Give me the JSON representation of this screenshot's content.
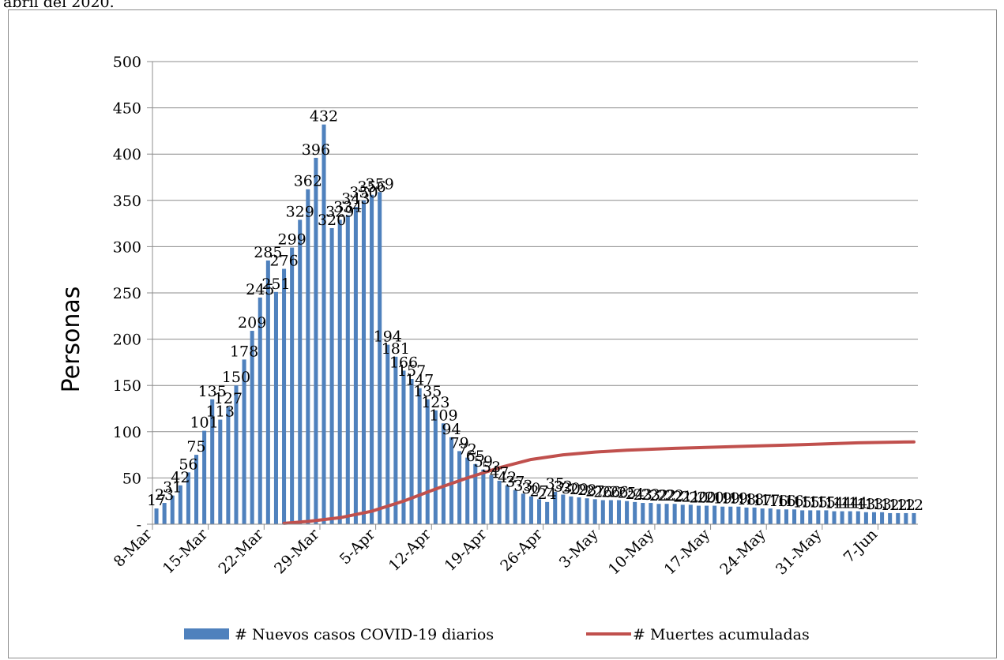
{
  "page": {
    "header_text": "abril del 2020."
  },
  "colors": {
    "bars": "#4F81BD",
    "line": "#C0504D",
    "grid": "#8c8c8c",
    "frame": "#8c8c8c"
  },
  "chart_data": {
    "type": "bar",
    "ylabel": "Personas",
    "ylim": [
      0,
      500
    ],
    "yticks": [
      0,
      50,
      100,
      150,
      200,
      250,
      300,
      350,
      400,
      450,
      500
    ],
    "ytick_labels": [
      "-",
      "50",
      "100",
      "150",
      "200",
      "250",
      "300",
      "350",
      "400",
      "450",
      "500"
    ],
    "xtick_labels": [
      "8-Mar",
      "15-Mar",
      "22-Mar",
      "29-Mar",
      "5-Apr",
      "12-Apr",
      "19-Apr",
      "26-Apr",
      "3-May",
      "10-May",
      "17-May",
      "24-May",
      "31-May",
      "7-Jun"
    ],
    "x_start": "8-Mar",
    "x_end": "11-Jun",
    "grid": true,
    "legend": "bottom",
    "series": [
      {
        "name": "# Nuevos casos COVID-19 diarios",
        "type": "bar",
        "values": [
          17,
          23,
          31,
          42,
          56,
          75,
          101,
          135,
          113,
          127,
          150,
          178,
          209,
          245,
          285,
          251,
          276,
          299,
          329,
          362,
          396,
          432,
          320,
          329,
          334,
          343,
          350,
          356,
          359,
          194,
          181,
          166,
          157,
          147,
          135,
          123,
          109,
          94,
          79,
          72,
          65,
          59,
          53,
          47,
          42,
          37,
          33,
          30,
          27,
          24,
          35,
          32,
          30,
          29,
          28,
          27,
          26,
          26,
          26,
          25,
          24,
          23,
          23,
          22,
          22,
          22,
          21,
          21,
          20,
          20,
          20,
          19,
          19,
          19,
          18,
          18,
          17,
          17,
          16,
          16,
          16,
          15,
          15,
          15,
          15,
          14,
          14,
          14,
          14,
          13,
          13,
          13,
          12,
          12,
          12,
          12
        ]
      },
      {
        "name": "# Muertes acumuladas",
        "type": "line",
        "points": [
          [
            "24-Mar",
            1
          ],
          [
            "27-Mar",
            3
          ],
          [
            "31-Mar",
            7
          ],
          [
            "4-Apr",
            14
          ],
          [
            "8-Apr",
            25
          ],
          [
            "12-Apr",
            38
          ],
          [
            "16-Apr",
            50
          ],
          [
            "20-Apr",
            61
          ],
          [
            "24-Apr",
            70
          ],
          [
            "28-Apr",
            75
          ],
          [
            "2-May",
            78
          ],
          [
            "6-May",
            80
          ],
          [
            "12-May",
            82
          ],
          [
            "20-May",
            84
          ],
          [
            "28-May",
            86
          ],
          [
            "4-Jun",
            88
          ],
          [
            "11-Jun",
            89
          ]
        ]
      }
    ]
  }
}
